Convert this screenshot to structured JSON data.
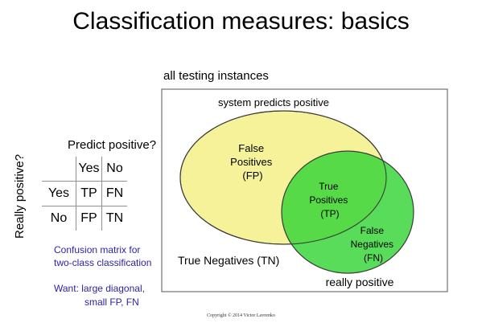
{
  "title": "Classification measures: basics",
  "confusion_matrix": {
    "predict_label": "Predict positive?",
    "really_label": "Really positive?",
    "col_headers": [
      "Yes",
      "No"
    ],
    "rows": [
      {
        "header": "Yes",
        "cells": [
          "TP",
          "FN"
        ]
      },
      {
        "header": "No",
        "cells": [
          "FP",
          "TN"
        ]
      }
    ],
    "caption_lines": [
      "Confusion matrix  for",
      "two-class classification"
    ],
    "want_lines": [
      "Want: large diagonal,",
      "small FP, FN"
    ]
  },
  "venn": {
    "box_label": "all testing instances",
    "predicts_label": "system predicts positive",
    "really_label": "really positive",
    "fp_lines": [
      "False",
      "Positives",
      "(FP)"
    ],
    "tp_lines": [
      "True",
      "Positives",
      "(TP)"
    ],
    "fn_lines": [
      "False",
      "Negatives",
      "(FN)"
    ],
    "tn_label": "True Negatives (TN)",
    "colors": {
      "predicted_fill": "#f5f29a",
      "actual_fill": "#35d435",
      "outline": "#3a3a3a"
    }
  },
  "copyright": "Copyright © 2014 Victor Lavrenko"
}
